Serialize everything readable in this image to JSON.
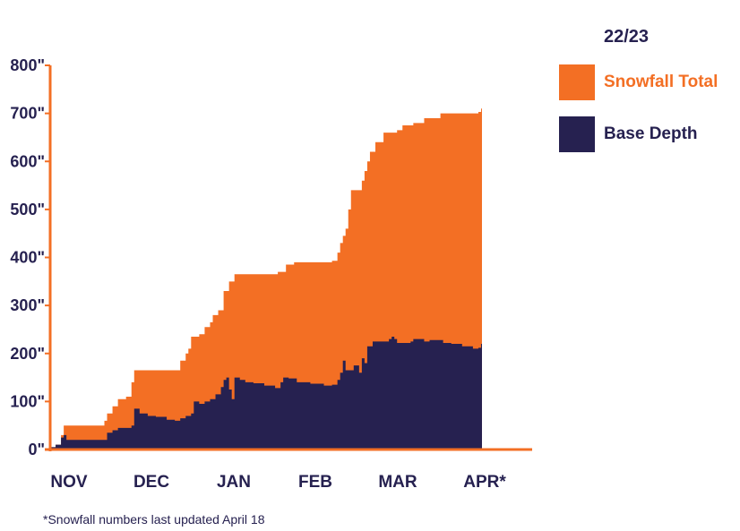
{
  "chart_data": {
    "type": "area",
    "season": "22/23",
    "y_tick_labels": [
      "0\"",
      "100\"",
      "200\"",
      "300\"",
      "400\"",
      "500\"",
      "600\"",
      "700\"",
      "800\""
    ],
    "ylim": [
      0,
      800
    ],
    "y_unit": "inches",
    "months": [
      "NOV",
      "DEC",
      "JAN",
      "FEB",
      "MAR",
      "APR*"
    ],
    "x_unit": "day of season",
    "xlim": [
      0,
      160
    ],
    "series": [
      {
        "name": "Snowfall Total",
        "color": "#f36f24",
        "points": [
          [
            0,
            5
          ],
          [
            2,
            10
          ],
          [
            4,
            30
          ],
          [
            5,
            50
          ],
          [
            15,
            50
          ],
          [
            20,
            60
          ],
          [
            21,
            75
          ],
          [
            23,
            90
          ],
          [
            25,
            105
          ],
          [
            28,
            110
          ],
          [
            30,
            140
          ],
          [
            31,
            165
          ],
          [
            46,
            165
          ],
          [
            48,
            185
          ],
          [
            50,
            200
          ],
          [
            51,
            210
          ],
          [
            52,
            235
          ],
          [
            55,
            240
          ],
          [
            57,
            255
          ],
          [
            59,
            265
          ],
          [
            60,
            280
          ],
          [
            62,
            290
          ],
          [
            64,
            330
          ],
          [
            66,
            350
          ],
          [
            68,
            365
          ],
          [
            84,
            370
          ],
          [
            87,
            385
          ],
          [
            90,
            390
          ],
          [
            104,
            393
          ],
          [
            106,
            410
          ],
          [
            107,
            430
          ],
          [
            108,
            445
          ],
          [
            109,
            460
          ],
          [
            110,
            500
          ],
          [
            111,
            540
          ],
          [
            115,
            560
          ],
          [
            116,
            580
          ],
          [
            117,
            600
          ],
          [
            118,
            620
          ],
          [
            120,
            640
          ],
          [
            123,
            660
          ],
          [
            128,
            665
          ],
          [
            130,
            675
          ],
          [
            134,
            680
          ],
          [
            138,
            690
          ],
          [
            144,
            700
          ],
          [
            158,
            703
          ],
          [
            159,
            710
          ]
        ]
      },
      {
        "name": "Base Depth",
        "color": "#262150",
        "points": [
          [
            0,
            5
          ],
          [
            2,
            10
          ],
          [
            4,
            25
          ],
          [
            5,
            30
          ],
          [
            6,
            20
          ],
          [
            20,
            20
          ],
          [
            21,
            35
          ],
          [
            23,
            40
          ],
          [
            25,
            45
          ],
          [
            30,
            50
          ],
          [
            31,
            85
          ],
          [
            33,
            75
          ],
          [
            36,
            70
          ],
          [
            39,
            68
          ],
          [
            43,
            62
          ],
          [
            46,
            60
          ],
          [
            48,
            65
          ],
          [
            50,
            70
          ],
          [
            52,
            75
          ],
          [
            53,
            100
          ],
          [
            55,
            95
          ],
          [
            57,
            100
          ],
          [
            59,
            105
          ],
          [
            61,
            115
          ],
          [
            63,
            130
          ],
          [
            64,
            145
          ],
          [
            65,
            150
          ],
          [
            66,
            125
          ],
          [
            67,
            105
          ],
          [
            68,
            150
          ],
          [
            70,
            145
          ],
          [
            72,
            140
          ],
          [
            75,
            138
          ],
          [
            79,
            133
          ],
          [
            83,
            128
          ],
          [
            85,
            140
          ],
          [
            86,
            150
          ],
          [
            88,
            148
          ],
          [
            91,
            140
          ],
          [
            96,
            137
          ],
          [
            101,
            133
          ],
          [
            104,
            135
          ],
          [
            106,
            145
          ],
          [
            107,
            160
          ],
          [
            108,
            185
          ],
          [
            109,
            165
          ],
          [
            110,
            165
          ],
          [
            112,
            175
          ],
          [
            114,
            160
          ],
          [
            115,
            190
          ],
          [
            116,
            180
          ],
          [
            117,
            215
          ],
          [
            119,
            225
          ],
          [
            122,
            225
          ],
          [
            125,
            230
          ],
          [
            126,
            235
          ],
          [
            127,
            230
          ],
          [
            128,
            222
          ],
          [
            133,
            225
          ],
          [
            134,
            230
          ],
          [
            138,
            225
          ],
          [
            140,
            228
          ],
          [
            145,
            222
          ],
          [
            148,
            220
          ],
          [
            152,
            215
          ],
          [
            156,
            210
          ],
          [
            158,
            212
          ],
          [
            159,
            220
          ]
        ]
      }
    ],
    "legend_position": "right",
    "grid": false,
    "footnote": "*Snowfall numbers last updated April 18"
  }
}
